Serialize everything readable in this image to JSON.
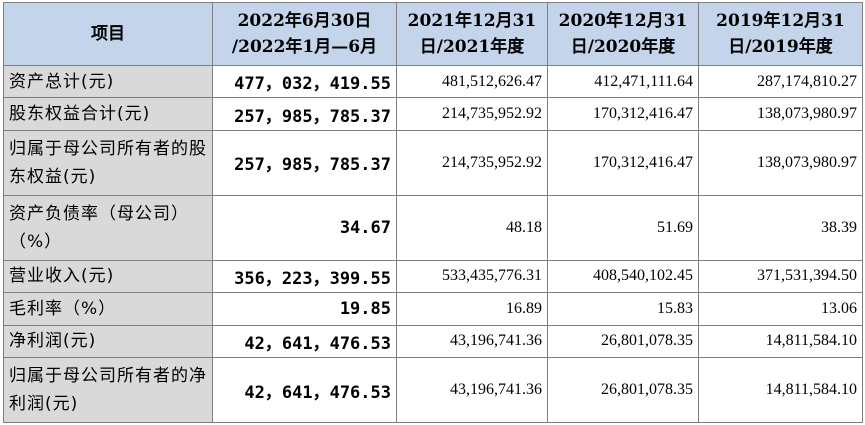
{
  "headers": [
    [
      "项目"
    ],
    [
      "2022年6月30日",
      "/2022年1月—6月"
    ],
    [
      "2021年12月31",
      "日/2021年度"
    ],
    [
      "2020年12月31",
      "日/2020年度"
    ],
    [
      "2019年12月31",
      "日/2019年度"
    ]
  ],
  "rows": [
    {
      "label": "资产总计(元)",
      "values": [
        "477，032，419.55",
        "481,512,626.47",
        "412,471,111.64",
        "287,174,810.27"
      ]
    },
    {
      "label": "股东权益合计(元)",
      "values": [
        "257，985，785.37",
        "214,735,952.92",
        "170,312,416.47",
        "138,073,980.97"
      ]
    },
    {
      "label": "归属于母公司所有者的股东权益(元)",
      "values": [
        "257，985，785.37",
        "214,735,952.92",
        "170,312,416.47",
        "138,073,980.97"
      ]
    },
    {
      "label": "资产负债率（母公司）（%）",
      "values": [
        "34.67",
        "48.18",
        "51.69",
        "38.39"
      ]
    },
    {
      "label": "营业收入(元)",
      "values": [
        "356，223，399.55",
        "533,435,776.31",
        "408,540,102.45",
        "371,531,394.50"
      ]
    },
    {
      "label": "毛利率（%）",
      "values": [
        "19.85",
        "16.89",
        "15.83",
        "13.06"
      ]
    },
    {
      "label": "净利润(元)",
      "values": [
        "42，641，476.53",
        "43,196,741.36",
        "26,801,078.35",
        "14,811,584.10"
      ]
    },
    {
      "label": "归属于母公司所有者的净利润(元)",
      "values": [
        "42，641，476.53",
        "43,196,741.36",
        "26,801,078.35",
        "14,811,584.10"
      ]
    }
  ]
}
